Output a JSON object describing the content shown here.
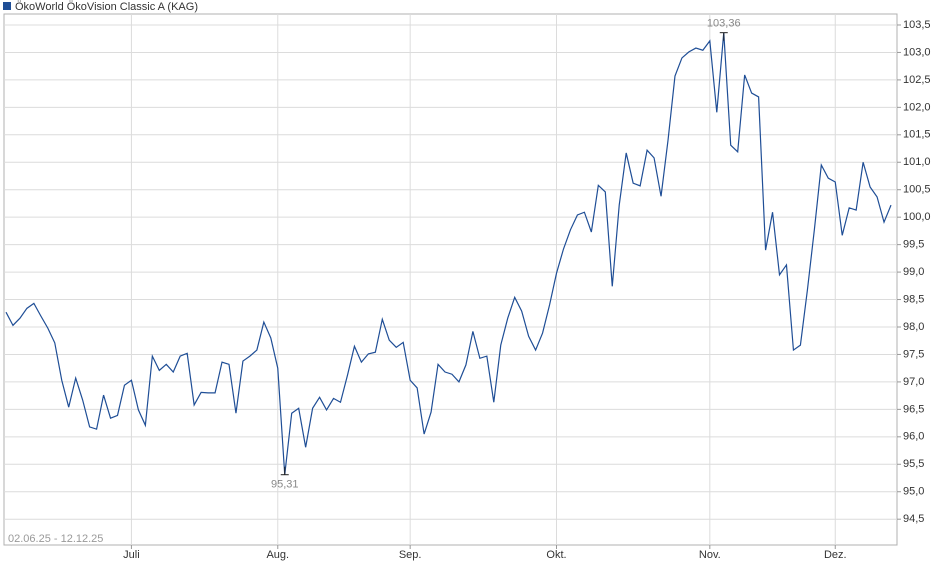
{
  "chart_data": {
    "type": "line",
    "title": "ÖkoWorld ÖkoVision Classic A (KAG)",
    "subtitle": "02.06.25 - 12.12.25",
    "categories": [
      null,
      null,
      null,
      null,
      null,
      null,
      null,
      null,
      null,
      null,
      null,
      null,
      null,
      null,
      null,
      null,
      null,
      null,
      "Juli",
      null,
      null,
      null,
      null,
      null,
      null,
      null,
      null,
      null,
      null,
      null,
      null,
      null,
      null,
      null,
      null,
      null,
      null,
      null,
      null,
      "Aug.",
      null,
      null,
      null,
      null,
      null,
      null,
      null,
      null,
      null,
      null,
      null,
      null,
      null,
      null,
      null,
      null,
      null,
      null,
      "Sep.",
      null,
      null,
      null,
      null,
      null,
      null,
      null,
      null,
      null,
      null,
      null,
      null,
      null,
      null,
      null,
      null,
      null,
      null,
      null,
      null,
      "Okt.",
      null,
      null,
      null,
      null,
      null,
      null,
      null,
      null,
      null,
      null,
      null,
      null,
      null,
      null,
      null,
      null,
      null,
      null,
      null,
      null,
      null,
      "Nov.",
      null,
      null,
      null,
      null,
      null,
      null,
      null,
      null,
      null,
      null,
      null,
      null,
      null,
      null,
      null,
      null,
      null,
      "Dez.",
      null,
      null,
      null,
      null,
      null,
      null,
      null,
      null
    ],
    "series": [
      {
        "name": "ÖkoWorld ÖkoVision Classic A (KAG)",
        "color": "#1f4e96",
        "values": [
          98.27,
          98.03,
          98.16,
          98.34,
          98.43,
          98.2,
          97.98,
          97.71,
          97.03,
          96.54,
          97.07,
          96.67,
          96.18,
          96.14,
          96.76,
          96.34,
          96.39,
          96.94,
          97.03,
          96.49,
          96.21,
          97.47,
          97.21,
          97.32,
          97.18,
          97.47,
          97.52,
          96.58,
          96.81,
          96.8,
          96.8,
          97.36,
          97.32,
          96.43,
          97.38,
          97.47,
          97.58,
          98.09,
          97.8,
          97.25,
          95.31,
          96.43,
          96.52,
          95.81,
          96.52,
          96.72,
          96.49,
          96.7,
          96.63,
          97.12,
          97.65,
          97.36,
          97.51,
          97.54,
          98.14,
          97.76,
          97.63,
          97.72,
          97.03,
          96.89,
          96.05,
          96.45,
          97.32,
          97.18,
          97.14,
          97.0,
          97.31,
          97.92,
          97.43,
          97.47,
          96.63,
          97.67,
          98.16,
          98.54,
          98.29,
          97.83,
          97.58,
          97.89,
          98.4,
          98.98,
          99.42,
          99.77,
          100.04,
          100.09,
          99.73,
          100.58,
          100.46,
          98.74,
          100.22,
          101.17,
          100.62,
          100.57,
          101.22,
          101.08,
          100.38,
          101.4,
          102.57,
          102.9,
          103.01,
          103.08,
          103.04,
          103.21,
          101.91,
          103.36,
          101.31,
          101.19,
          102.59,
          102.26,
          102.19,
          99.4,
          100.09,
          98.95,
          99.13,
          97.58,
          97.67,
          98.67,
          99.77,
          100.95,
          100.71,
          100.64,
          99.67,
          100.17,
          100.13,
          101.0,
          100.55,
          100.37,
          99.91,
          100.22
        ]
      }
    ],
    "annotations": [
      {
        "label": "95,31",
        "value": 95.31
      },
      {
        "label": "103,36",
        "value": 103.36
      }
    ],
    "ylim": [
      94.03,
      103.7
    ],
    "yticks": [
      {
        "value": 94.5,
        "label": "94,5"
      },
      {
        "value": 95,
        "label": "95,0"
      },
      {
        "value": 95.5,
        "label": "95,5"
      },
      {
        "value": 96,
        "label": "96,0"
      },
      {
        "value": 96.5,
        "label": "96,5"
      },
      {
        "value": 97,
        "label": "97,0"
      },
      {
        "value": 97.5,
        "label": "97,5"
      },
      {
        "value": 98,
        "label": "98,0"
      },
      {
        "value": 98.5,
        "label": "98,5"
      },
      {
        "value": 99,
        "label": "99,0"
      },
      {
        "value": 99.5,
        "label": "99,5"
      },
      {
        "value": 100,
        "label": "100,0"
      },
      {
        "value": 100.5,
        "label": "100,5"
      },
      {
        "value": 101,
        "label": "101,0"
      },
      {
        "value": 101.5,
        "label": "101,5"
      },
      {
        "value": 102,
        "label": "102,0"
      },
      {
        "value": 102.5,
        "label": "102,5"
      },
      {
        "value": 103,
        "label": "103,0"
      },
      {
        "value": 103.5,
        "label": "103,5"
      }
    ],
    "grid": true,
    "legend": "top-left"
  }
}
